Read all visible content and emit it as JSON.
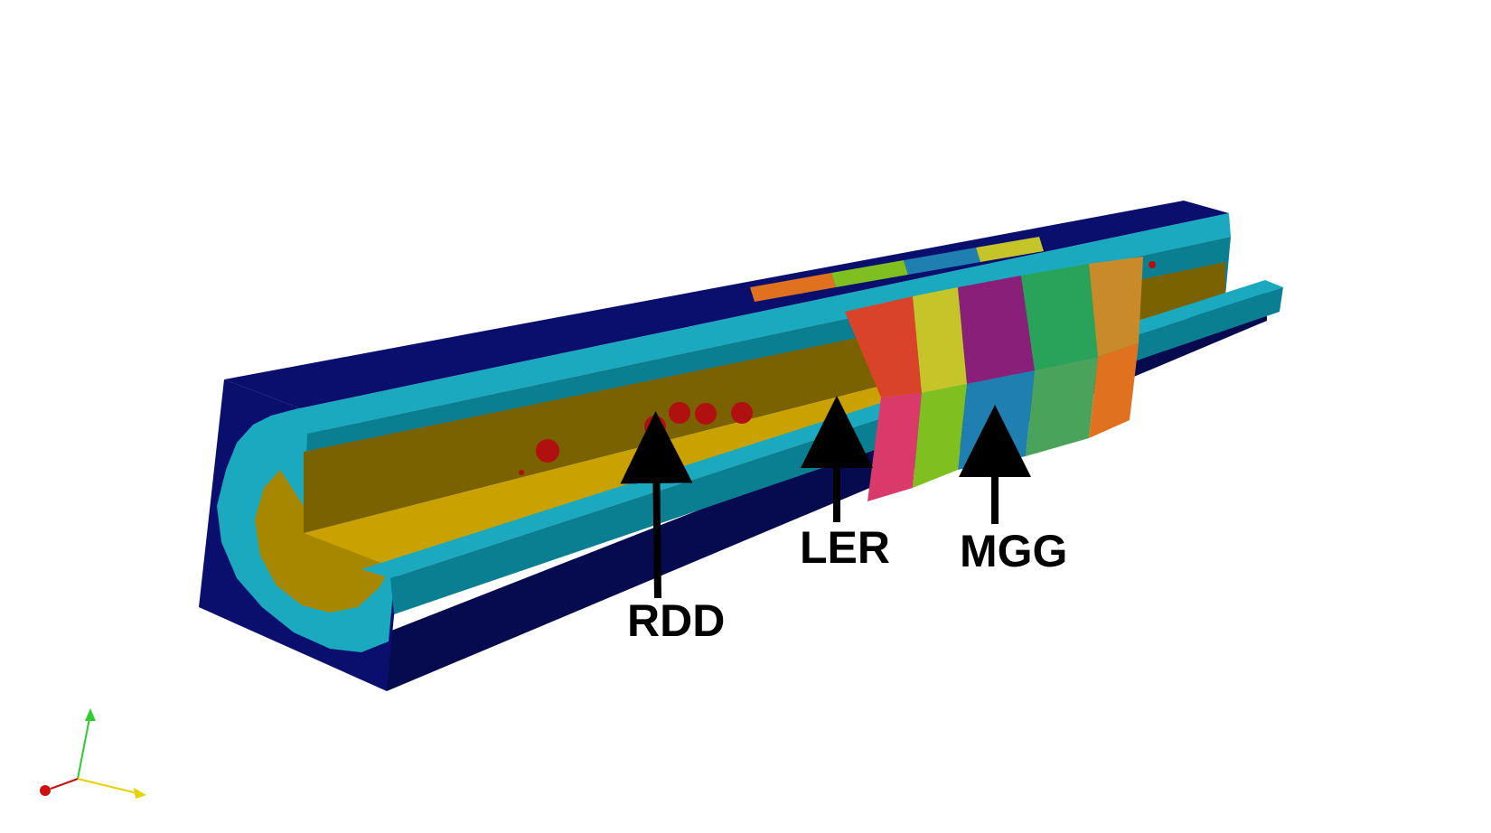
{
  "labels": {
    "rdd": "RDD",
    "ler": "LER",
    "mgg": "MGG"
  },
  "colors": {
    "background": "#ffffff",
    "outer_block": "#0a0f6e",
    "outer_block_dark": "#060a4e",
    "liner_light": "#1aa9bf",
    "liner_dark": "#0b7f92",
    "metal_light": "#c9a100",
    "metal_dark": "#7a6200",
    "defect_red": "#b01010",
    "arrow": "#000000",
    "axis_x": "#e8d200",
    "axis_y": "#2ecc2e",
    "axis_z": "#cc1010"
  },
  "grain_colors": [
    "#d9432a",
    "#e0721f",
    "#c5c52a",
    "#7fbf1f",
    "#2aa35a",
    "#1f7fb0",
    "#8a1f7a",
    "#d93a6a",
    "#c98a2a",
    "#4aa35a"
  ],
  "icons": {
    "orientation_axes": "axes-triad-icon"
  }
}
